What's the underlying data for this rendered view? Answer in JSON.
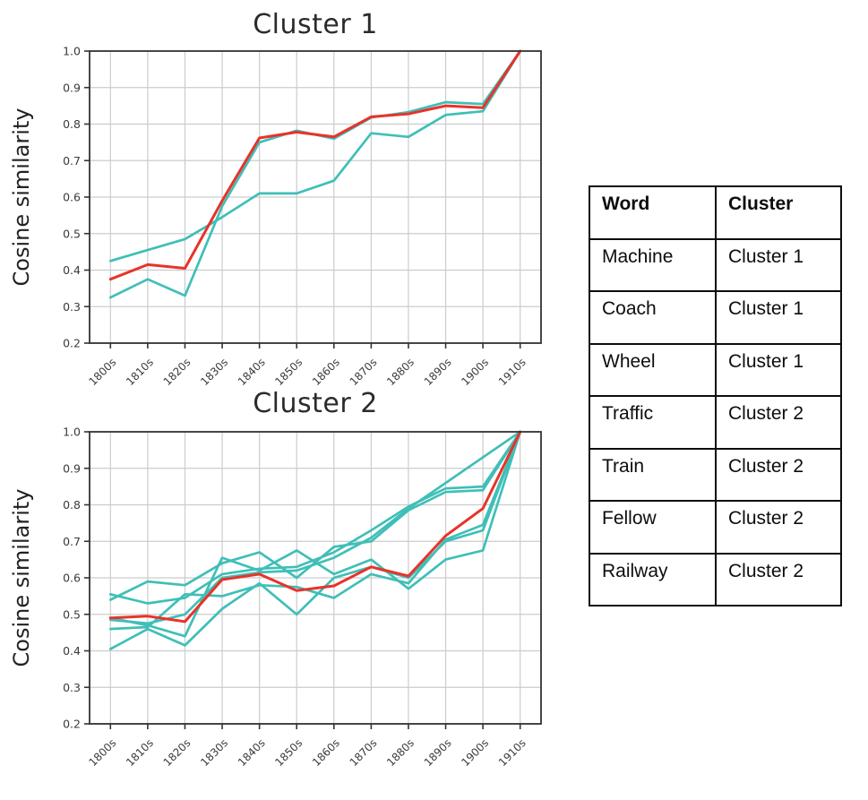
{
  "colors": {
    "member_line": "#3fbfb7",
    "target_line": "#e8332a",
    "grid": "#cccccc",
    "axis": "#333333",
    "tick_text": "#3a3a3a",
    "title_text": "#2b2b2b"
  },
  "chart_data": [
    {
      "type": "line",
      "title": "Cluster 1",
      "xlabel": "",
      "ylabel": "Cosine similarity",
      "categories": [
        "1800s",
        "1810s",
        "1820s",
        "1830s",
        "1840s",
        "1850s",
        "1860s",
        "1870s",
        "1880s",
        "1890s",
        "1900s",
        "1910s"
      ],
      "ylim": [
        0.2,
        1.0
      ],
      "yticks": [
        "0.2",
        "0.3",
        "0.4",
        "0.5",
        "0.6",
        "0.7",
        "0.8",
        "0.9",
        "1.0"
      ],
      "grid": true,
      "legend": "none",
      "series": [
        {
          "name": "cluster1-member-line-1",
          "color": "#3fbfb7",
          "values": [
            0.425,
            0.455,
            0.485,
            0.545,
            0.61,
            0.61,
            0.645,
            0.775,
            0.765,
            0.825,
            0.835,
            1.0
          ]
        },
        {
          "name": "cluster1-member-line-2",
          "color": "#3fbfb7",
          "values": [
            0.325,
            0.375,
            0.33,
            0.575,
            0.75,
            0.782,
            0.76,
            0.818,
            0.833,
            0.86,
            0.855,
            1.0
          ]
        },
        {
          "name": "cluster1-red-line",
          "color": "#e8332a",
          "values": [
            0.375,
            0.415,
            0.405,
            0.59,
            0.762,
            0.778,
            0.765,
            0.82,
            0.828,
            0.85,
            0.845,
            1.0
          ]
        }
      ]
    },
    {
      "type": "line",
      "title": "Cluster 2",
      "xlabel": "",
      "ylabel": "Cosine similarity",
      "categories": [
        "1800s",
        "1810s",
        "1820s",
        "1830s",
        "1840s",
        "1850s",
        "1860s",
        "1870s",
        "1880s",
        "1890s",
        "1900s",
        "1910s"
      ],
      "ylim": [
        0.2,
        1.0
      ],
      "yticks": [
        "0.2",
        "0.3",
        "0.4",
        "0.5",
        "0.6",
        "0.7",
        "0.8",
        "0.9",
        "1.0"
      ],
      "grid": true,
      "legend": "none",
      "series": [
        {
          "name": "cluster2-member-line-1",
          "color": "#3fbfb7",
          "values": [
            0.555,
            0.53,
            0.545,
            0.61,
            0.625,
            0.63,
            0.67,
            0.73,
            0.795,
            0.845,
            0.85,
            1.0
          ]
        },
        {
          "name": "cluster2-member-line-2",
          "color": "#3fbfb7",
          "values": [
            0.54,
            0.59,
            0.58,
            0.64,
            0.67,
            0.6,
            0.685,
            0.7,
            0.785,
            0.835,
            0.84,
            1.0
          ]
        },
        {
          "name": "cluster2-member-line-3",
          "color": "#3fbfb7",
          "values": [
            0.49,
            0.47,
            0.44,
            0.655,
            0.62,
            0.675,
            0.61,
            0.65,
            0.57,
            0.65,
            0.675,
            1.0
          ]
        },
        {
          "name": "cluster2-member-line-4",
          "color": "#3fbfb7",
          "values": [
            0.46,
            0.465,
            0.555,
            0.55,
            0.58,
            0.575,
            0.545,
            0.61,
            0.585,
            0.705,
            0.745,
            1.0
          ]
        },
        {
          "name": "cluster2-member-line-5",
          "color": "#3fbfb7",
          "values": [
            0.405,
            0.46,
            0.415,
            0.515,
            0.585,
            0.5,
            0.6,
            0.63,
            0.6,
            0.7,
            0.73,
            1.0
          ]
        },
        {
          "name": "cluster2-member-line-6",
          "color": "#3fbfb7",
          "values": [
            0.485,
            0.475,
            0.5,
            0.6,
            0.615,
            0.62,
            0.655,
            0.71,
            0.79,
            0.86,
            0.93,
            1.0
          ]
        },
        {
          "name": "cluster2-red-line",
          "color": "#e8332a",
          "values": [
            0.49,
            0.495,
            0.48,
            0.595,
            0.61,
            0.565,
            0.578,
            0.63,
            0.605,
            0.715,
            0.79,
            1.0
          ]
        }
      ]
    }
  ],
  "table": {
    "headers": {
      "word": "Word",
      "cluster": "Cluster"
    },
    "rows": [
      {
        "word": "Machine",
        "cluster": "Cluster 1"
      },
      {
        "word": "Coach",
        "cluster": "Cluster 1"
      },
      {
        "word": "Wheel",
        "cluster": "Cluster 1"
      },
      {
        "word": "Traffic",
        "cluster": "Cluster 2"
      },
      {
        "word": "Train",
        "cluster": "Cluster 2"
      },
      {
        "word": "Fellow",
        "cluster": "Cluster 2"
      },
      {
        "word": "Railway",
        "cluster": "Cluster 2"
      }
    ]
  }
}
